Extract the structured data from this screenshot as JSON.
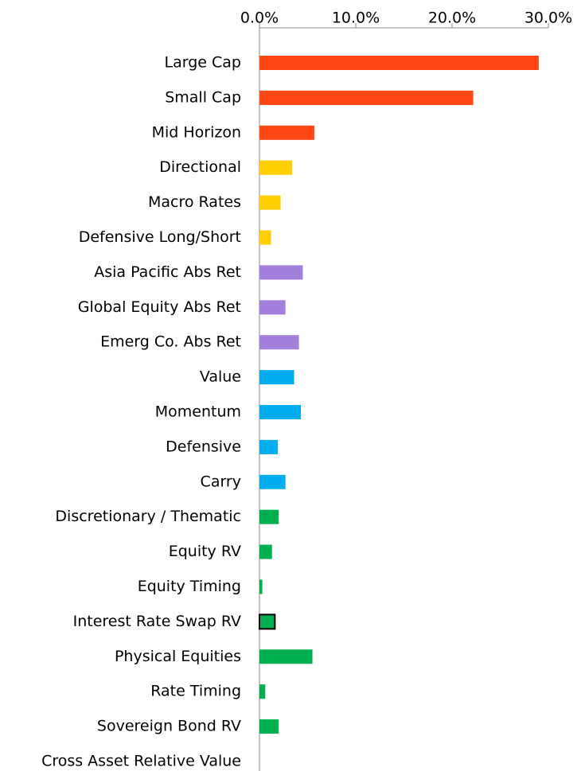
{
  "chart_data": {
    "type": "barh",
    "categories": [
      "Large Cap",
      "Small Cap",
      "Mid Horizon",
      "Directional",
      "Macro Rates",
      "Defensive Long/Short",
      "Asia Pacific Abs Ret",
      "Global Equity Abs Ret",
      "Emerg Co. Abs Ret",
      "Value",
      "Momentum",
      "Defensive",
      "Carry",
      "Discretionary / Thematic",
      "Equity RV",
      "Equity Timing",
      "Interest Rate Swap RV",
      "Physical Equities",
      "Rate Timing",
      "Sovereign Bond RV",
      "Cross Asset Relative Value"
    ],
    "values": [
      29.0,
      22.2,
      5.7,
      3.4,
      2.2,
      1.2,
      4.5,
      2.7,
      4.1,
      3.6,
      4.3,
      1.9,
      2.7,
      2.0,
      1.3,
      0.3,
      1.6,
      5.5,
      0.6,
      2.0,
      0
    ],
    "colors": [
      "#ff4713",
      "#ff4713",
      "#ff4713",
      "#ffce00",
      "#ffce00",
      "#ffce00",
      "#a37fdc",
      "#a37fdc",
      "#a37fdc",
      "#00aeef",
      "#00aeef",
      "#00aeef",
      "#00aeef",
      "#00b050",
      "#00b050",
      "#00b050",
      "#00b050",
      "#00b050",
      "#00b050",
      "#00b050",
      "#00b050"
    ],
    "edge_colors": [
      "none",
      "none",
      "none",
      "none",
      "none",
      "none",
      "none",
      "none",
      "none",
      "none",
      "none",
      "none",
      "none",
      "none",
      "none",
      "none",
      "#000000",
      "none",
      "none",
      "none",
      "none"
    ],
    "xlim": [
      0,
      30
    ],
    "xticks": [
      {
        "value": 0,
        "label": "0.0%"
      },
      {
        "value": 10,
        "label": "10.0%"
      },
      {
        "value": 20,
        "label": "20.0%"
      },
      {
        "value": 30,
        "label": "30.0%"
      }
    ],
    "axis_position": "top",
    "grid": false
  }
}
